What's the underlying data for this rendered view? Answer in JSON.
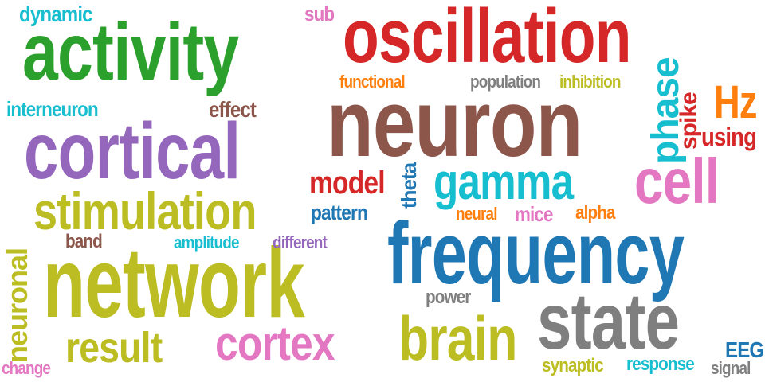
{
  "cloud": {
    "words": [
      {
        "id": "oscillation",
        "text": "oscillation",
        "color": "#d62728"
      },
      {
        "id": "activity",
        "text": "activity",
        "color": "#2ca02c"
      },
      {
        "id": "neuron",
        "text": "neuron",
        "color": "#8c564b"
      },
      {
        "id": "cortical",
        "text": "cortical",
        "color": "#9467bd"
      },
      {
        "id": "stimulation",
        "text": "stimulation",
        "color": "#bcbd22"
      },
      {
        "id": "network",
        "text": "network",
        "color": "#bcbd22"
      },
      {
        "id": "frequency",
        "text": "frequency",
        "color": "#1f77b4"
      },
      {
        "id": "state",
        "text": "state",
        "color": "#7f7f7f"
      },
      {
        "id": "brain",
        "text": "brain",
        "color": "#bcbd22"
      },
      {
        "id": "cortex",
        "text": "cortex",
        "color": "#e377c2"
      },
      {
        "id": "result",
        "text": "result",
        "color": "#bcbd22"
      },
      {
        "id": "gamma",
        "text": "gamma",
        "color": "#17becf"
      },
      {
        "id": "cell",
        "text": "cell",
        "color": "#e377c2"
      },
      {
        "id": "hz",
        "text": "Hz",
        "color": "#ff7f0e"
      },
      {
        "id": "phase",
        "text": "phase",
        "color": "#17becf"
      },
      {
        "id": "spike",
        "text": "spike",
        "color": "#d62728"
      },
      {
        "id": "using",
        "text": "using",
        "color": "#d62728"
      },
      {
        "id": "model",
        "text": "model",
        "color": "#d62728"
      },
      {
        "id": "theta",
        "text": "theta",
        "color": "#1f77b4"
      },
      {
        "id": "pattern",
        "text": "pattern",
        "color": "#1f77b4"
      },
      {
        "id": "neural",
        "text": "neural",
        "color": "#ff7f0e"
      },
      {
        "id": "mice",
        "text": "mice",
        "color": "#e377c2"
      },
      {
        "id": "alpha",
        "text": "alpha",
        "color": "#ff7f0e"
      },
      {
        "id": "dynamic",
        "text": "dynamic",
        "color": "#17becf"
      },
      {
        "id": "sub",
        "text": "sub",
        "color": "#e377c2"
      },
      {
        "id": "functional",
        "text": "functional",
        "color": "#ff7f0e"
      },
      {
        "id": "population",
        "text": "population",
        "color": "#7f7f7f"
      },
      {
        "id": "inhibition",
        "text": "inhibition",
        "color": "#bcbd22"
      },
      {
        "id": "interneuron",
        "text": "interneuron",
        "color": "#17becf"
      },
      {
        "id": "effect",
        "text": "effect",
        "color": "#8c564b"
      },
      {
        "id": "band",
        "text": "band",
        "color": "#8c564b"
      },
      {
        "id": "amplitude",
        "text": "amplitude",
        "color": "#17becf"
      },
      {
        "id": "different",
        "text": "different",
        "color": "#9467bd"
      },
      {
        "id": "neuronal",
        "text": "neuronal",
        "color": "#bcbd22"
      },
      {
        "id": "power",
        "text": "power",
        "color": "#7f7f7f"
      },
      {
        "id": "change",
        "text": "change",
        "color": "#e377c2"
      },
      {
        "id": "synaptic",
        "text": "synaptic",
        "color": "#bcbd22"
      },
      {
        "id": "response",
        "text": "response",
        "color": "#17becf"
      },
      {
        "id": "eeg",
        "text": "EEG",
        "color": "#1f77b4"
      },
      {
        "id": "signal",
        "text": "signal",
        "color": "#7f7f7f"
      }
    ]
  }
}
